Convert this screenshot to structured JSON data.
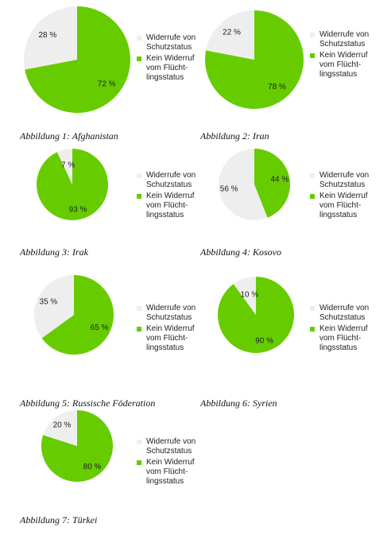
{
  "chart_data": [
    {
      "type": "pie",
      "title": "Abbildung 1: Afghanistan",
      "categories": [
        "Widerrufe von Schutzstatus",
        "Kein Widerruf vom Flücht­lingsstatus"
      ],
      "values": [
        28,
        72
      ],
      "value_labels": [
        "28 %",
        "72 %"
      ],
      "colors": [
        "#eeeeee",
        "#66cc00"
      ]
    },
    {
      "type": "pie",
      "title": "Abbildung 2: Iran",
      "categories": [
        "Widerrufe von Schutzstatus",
        "Kein Widerruf vom Flücht­lingsstatus"
      ],
      "values": [
        22,
        78
      ],
      "value_labels": [
        "22 %",
        "78 %"
      ],
      "colors": [
        "#eeeeee",
        "#66cc00"
      ]
    },
    {
      "type": "pie",
      "title": "Abbildung 3: Irak",
      "categories": [
        "Widerrufe von Schutzstatus",
        "Kein Widerruf vom Flücht­lingsstatus"
      ],
      "values": [
        7,
        93
      ],
      "value_labels": [
        "7 %",
        "93 %"
      ],
      "colors": [
        "#eeeeee",
        "#66cc00"
      ]
    },
    {
      "type": "pie",
      "title": "Abbildung 4: Kosovo",
      "categories": [
        "Widerrufe von Schutzstatus",
        "Kein Widerruf vom Flücht­lingsstatus"
      ],
      "values": [
        56,
        44
      ],
      "value_labels": [
        "56 %",
        "44 %"
      ],
      "colors": [
        "#eeeeee",
        "#66cc00"
      ]
    },
    {
      "type": "pie",
      "title": "Abbildung 5: Russische Föderation",
      "categories": [
        "Widerrufe von Schutzstatus",
        "Kein Widerruf vom Flücht­lingsstatus"
      ],
      "values": [
        35,
        65
      ],
      "value_labels": [
        "35 %",
        "65 %"
      ],
      "colors": [
        "#eeeeee",
        "#66cc00"
      ]
    },
    {
      "type": "pie",
      "title": "Abbildung 6: Syrien",
      "categories": [
        "Widerrufe von Schutzstatus",
        "Kein Widerruf vom Flücht­lingsstatus"
      ],
      "values": [
        10,
        90
      ],
      "value_labels": [
        "10 %",
        "90 %"
      ],
      "colors": [
        "#eeeeee",
        "#66cc00"
      ]
    },
    {
      "type": "pie",
      "title": "Abbildung 7: Türkei",
      "categories": [
        "Widerrufe von Schutzstatus",
        "Kein Widerruf vom Flücht­lingsstatus"
      ],
      "values": [
        20,
        80
      ],
      "value_labels": [
        "20 %",
        "80 %"
      ],
      "colors": [
        "#eeeeee",
        "#66cc00"
      ]
    }
  ]
}
